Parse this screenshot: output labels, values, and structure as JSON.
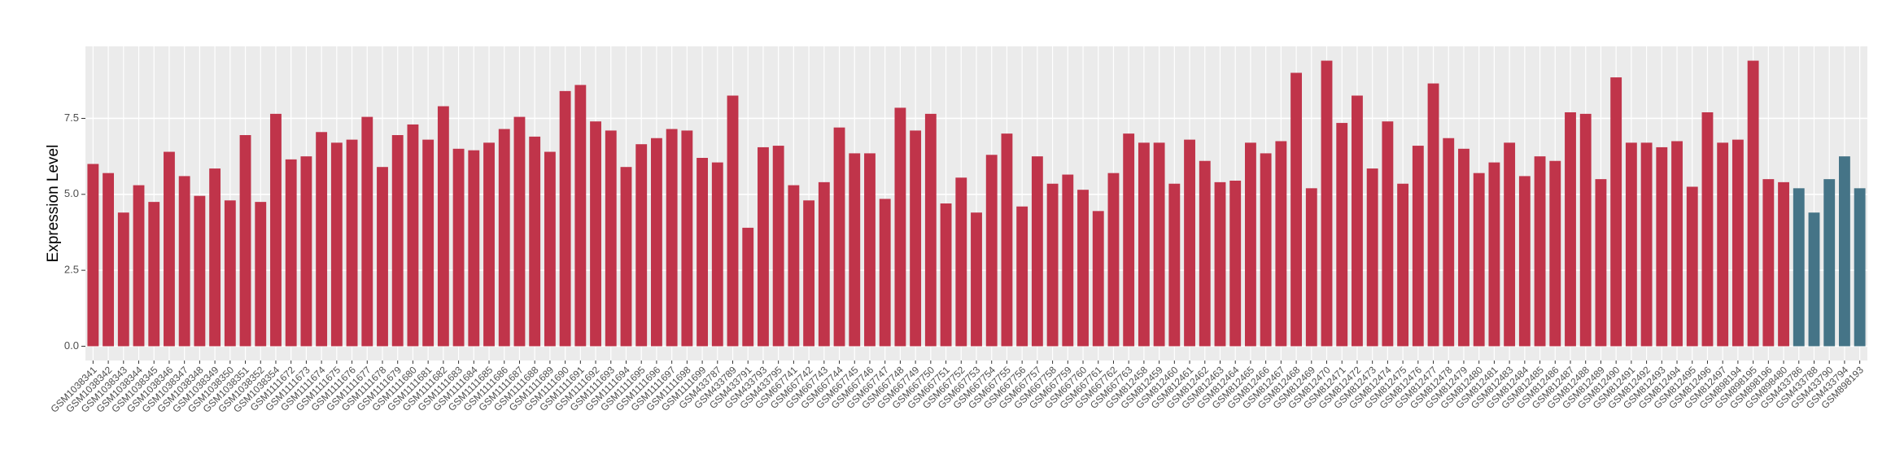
{
  "chart_data": {
    "type": "bar",
    "y_label": "Expression Level",
    "categories": [
      "GSM1038341",
      "GSM1038342",
      "GSM1038343",
      "GSM1038344",
      "GSM1038345",
      "GSM1038346",
      "GSM1038347",
      "GSM1038348",
      "GSM1038349",
      "GSM1038350",
      "GSM1038351",
      "GSM1038352",
      "GSM1038354",
      "GSM1111672",
      "GSM1111673",
      "GSM1111674",
      "GSM1111675",
      "GSM1111676",
      "GSM1111677",
      "GSM1111678",
      "GSM1111679",
      "GSM1111680",
      "GSM1111681",
      "GSM1111682",
      "GSM1111683",
      "GSM1111684",
      "GSM1111685",
      "GSM1111686",
      "GSM1111687",
      "GSM1111688",
      "GSM1111689",
      "GSM1111690",
      "GSM1111691",
      "GSM1111692",
      "GSM1111693",
      "GSM1111694",
      "GSM1111695",
      "GSM1111696",
      "GSM1111697",
      "GSM1111698",
      "GSM1111699",
      "GSM433787",
      "GSM433789",
      "GSM433791",
      "GSM433793",
      "GSM433795",
      "GSM667741",
      "GSM667742",
      "GSM667743",
      "GSM667744",
      "GSM667745",
      "GSM667746",
      "GSM667747",
      "GSM667748",
      "GSM667749",
      "GSM667750",
      "GSM667751",
      "GSM667752",
      "GSM667753",
      "GSM667754",
      "GSM667755",
      "GSM667756",
      "GSM667757",
      "GSM667758",
      "GSM667759",
      "GSM667760",
      "GSM667761",
      "GSM667762",
      "GSM667763",
      "GSM812458",
      "GSM812459",
      "GSM812460",
      "GSM812461",
      "GSM812462",
      "GSM812463",
      "GSM812464",
      "GSM812465",
      "GSM812466",
      "GSM812467",
      "GSM812468",
      "GSM812469",
      "GSM812470",
      "GSM812471",
      "GSM812472",
      "GSM812473",
      "GSM812474",
      "GSM812475",
      "GSM812476",
      "GSM812477",
      "GSM812478",
      "GSM812479",
      "GSM812480",
      "GSM812481",
      "GSM812483",
      "GSM812484",
      "GSM812485",
      "GSM812486",
      "GSM812487",
      "GSM812488",
      "GSM812489",
      "GSM812490",
      "GSM812491",
      "GSM812492",
      "GSM812493",
      "GSM812494",
      "GSM812495",
      "GSM812496",
      "GSM812497",
      "GSM898194",
      "GSM898195",
      "GSM898196",
      "GSM898480",
      "GSM433786",
      "GSM433788",
      "GSM433790",
      "GSM433794",
      "GSM898193"
    ],
    "values": [
      6.0,
      5.7,
      4.4,
      5.3,
      4.75,
      6.4,
      5.6,
      4.95,
      5.85,
      4.8,
      6.95,
      4.75,
      7.65,
      6.15,
      6.25,
      7.05,
      6.7,
      6.8,
      7.55,
      5.9,
      6.95,
      7.3,
      6.8,
      7.9,
      6.5,
      6.45,
      6.7,
      7.15,
      7.55,
      6.9,
      6.4,
      8.4,
      8.6,
      7.4,
      7.1,
      5.9,
      6.65,
      6.85,
      7.15,
      7.1,
      6.2,
      6.05,
      8.25,
      3.9,
      6.55,
      6.6,
      5.3,
      4.8,
      5.4,
      7.2,
      6.35,
      6.35,
      4.85,
      7.85,
      7.1,
      7.65,
      4.7,
      5.55,
      4.4,
      6.3,
      7.0,
      4.6,
      6.25,
      5.35,
      5.65,
      5.15,
      4.45,
      5.7,
      7.0,
      6.7,
      6.7,
      5.35,
      6.8,
      6.1,
      5.4,
      5.45,
      6.7,
      6.35,
      6.75,
      9.0,
      5.2,
      9.4,
      7.35,
      8.25,
      5.85,
      7.4,
      5.35,
      6.6,
      8.65,
      6.85,
      6.5,
      5.7,
      6.05,
      6.7,
      5.6,
      6.25,
      6.1,
      7.7,
      7.65,
      5.5,
      8.85,
      6.7,
      6.7,
      6.55,
      6.75,
      5.25,
      7.7,
      6.7,
      6.8,
      9.4,
      5.5,
      5.4,
      5.2,
      4.4,
      5.5,
      6.25,
      5.2
    ],
    "colors": [
      "#c0344a",
      "#c0344a",
      "#c0344a",
      "#c0344a",
      "#c0344a",
      "#c0344a",
      "#c0344a",
      "#c0344a",
      "#c0344a",
      "#c0344a",
      "#c0344a",
      "#c0344a",
      "#c0344a",
      "#c0344a",
      "#c0344a",
      "#c0344a",
      "#c0344a",
      "#c0344a",
      "#c0344a",
      "#c0344a",
      "#c0344a",
      "#c0344a",
      "#c0344a",
      "#c0344a",
      "#c0344a",
      "#c0344a",
      "#c0344a",
      "#c0344a",
      "#c0344a",
      "#c0344a",
      "#c0344a",
      "#c0344a",
      "#c0344a",
      "#c0344a",
      "#c0344a",
      "#c0344a",
      "#c0344a",
      "#c0344a",
      "#c0344a",
      "#c0344a",
      "#c0344a",
      "#c0344a",
      "#c0344a",
      "#c0344a",
      "#c0344a",
      "#c0344a",
      "#c0344a",
      "#c0344a",
      "#c0344a",
      "#c0344a",
      "#c0344a",
      "#c0344a",
      "#c0344a",
      "#c0344a",
      "#c0344a",
      "#c0344a",
      "#c0344a",
      "#c0344a",
      "#c0344a",
      "#c0344a",
      "#c0344a",
      "#c0344a",
      "#c0344a",
      "#c0344a",
      "#c0344a",
      "#c0344a",
      "#c0344a",
      "#c0344a",
      "#c0344a",
      "#c0344a",
      "#c0344a",
      "#c0344a",
      "#c0344a",
      "#c0344a",
      "#c0344a",
      "#c0344a",
      "#c0344a",
      "#c0344a",
      "#c0344a",
      "#c0344a",
      "#c0344a",
      "#c0344a",
      "#c0344a",
      "#c0344a",
      "#c0344a",
      "#c0344a",
      "#c0344a",
      "#c0344a",
      "#c0344a",
      "#c0344a",
      "#c0344a",
      "#c0344a",
      "#c0344a",
      "#c0344a",
      "#c0344a",
      "#c0344a",
      "#c0344a",
      "#c0344a",
      "#c0344a",
      "#c0344a",
      "#c0344a",
      "#c0344a",
      "#c0344a",
      "#c0344a",
      "#c0344a",
      "#c0344a",
      "#c0344a",
      "#c0344a",
      "#c0344a",
      "#c0344a",
      "#c0344a",
      "#c0344a",
      "#457487",
      "#457487",
      "#457487",
      "#457487",
      "#457487"
    ],
    "ylim": [
      -0.47,
      9.87
    ],
    "yticks": [
      {
        "value": 0,
        "label": "0.0"
      },
      2.5,
      {
        "value": 5,
        "label": "5.0"
      },
      7.5
    ],
    "grid": true
  }
}
